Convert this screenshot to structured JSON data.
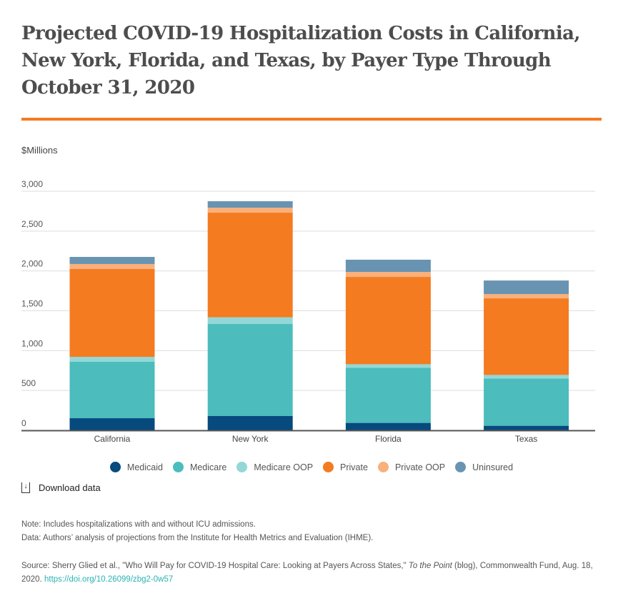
{
  "title": "Projected COVID-19 Hospitalization Costs in California, New York, Florida, and Texas, by Payer Type Through October 31, 2020",
  "download_label": "Download data",
  "note": "Note: Includes hospitalizations with and without ICU admissions.",
  "data_note": "Data: Authors’ analysis of projections from the Institute for Health Metrics and Evaluation (IHME).",
  "source": {
    "prefix": "Source: Sherry Glied et al., \"Who Will Pay for COVID-19 Hospital Care: Looking at Payers Across States,\" ",
    "italic": "To the Point",
    "suffix": " (blog), Commonwealth Fund, Aug. 18, 2020. ",
    "link": "https://doi.org/10.26099/zbg2-0w57"
  },
  "chart_data": {
    "type": "bar",
    "stacked": true,
    "title": "Projected COVID-19 Hospitalization Costs in California, New York, Florida, and Texas, by Payer Type Through October 31, 2020",
    "ylabel": "$Millions",
    "xlabel": "",
    "ylim": [
      0,
      3000
    ],
    "yticks": [
      "0",
      "500",
      "1,000",
      "1,500",
      "2,000",
      "2,500",
      "3,000"
    ],
    "grid": true,
    "legend_position": "bottom",
    "categories": [
      "California",
      "New York",
      "Florida",
      "Texas"
    ],
    "series": [
      {
        "name": "Medicaid",
        "color": "#064a7e",
        "values": [
          152,
          179,
          93,
          57
        ]
      },
      {
        "name": "Medicare",
        "color": "#4cbcbc",
        "values": [
          708,
          1155,
          691,
          593
        ]
      },
      {
        "name": "Medicare OOP",
        "color": "#93d7d7",
        "values": [
          62,
          84,
          45,
          45
        ]
      },
      {
        "name": "Private",
        "color": "#f47b20",
        "values": [
          1102,
          1313,
          1096,
          961
        ]
      },
      {
        "name": "Private OOP",
        "color": "#f9b07c",
        "values": [
          63,
          63,
          63,
          54
        ]
      },
      {
        "name": "Uninsured",
        "color": "#6894b2",
        "values": [
          89,
          81,
          153,
          170
        ]
      }
    ]
  }
}
